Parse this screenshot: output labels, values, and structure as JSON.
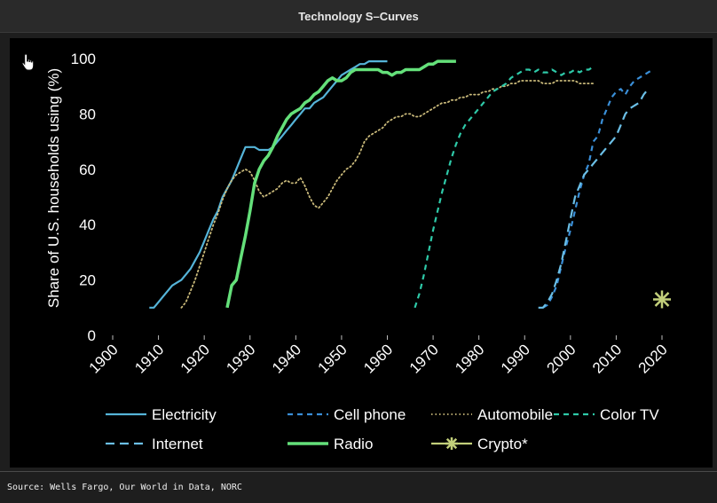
{
  "window": {
    "title": "Technology S–Curves"
  },
  "footer": {
    "source": "Source: Wells Fargo, Our World in Data, NORC"
  },
  "icons": {
    "cursor": "hand-pointer-icon"
  },
  "chart_data": {
    "type": "line",
    "title": "Technology S–Curves",
    "xlabel": "",
    "ylabel": "Share of U.S. households using (%)",
    "xlim": [
      1900,
      2020
    ],
    "ylim": [
      0,
      100
    ],
    "x_ticks": [
      1900,
      1910,
      1920,
      1930,
      1940,
      1950,
      1960,
      1970,
      1980,
      1990,
      2000,
      2010,
      2020
    ],
    "y_ticks": [
      0,
      20,
      40,
      60,
      80,
      100
    ],
    "grid": false,
    "legend_position": "bottom",
    "series": [
      {
        "name": "Electricity",
        "color": "#55b4d8",
        "style": "solid",
        "points": [
          [
            1908,
            10
          ],
          [
            1909,
            10
          ],
          [
            1910,
            12
          ],
          [
            1911,
            14
          ],
          [
            1912,
            16
          ],
          [
            1913,
            18
          ],
          [
            1914,
            19
          ],
          [
            1915,
            20
          ],
          [
            1916,
            22
          ],
          [
            1917,
            24
          ],
          [
            1918,
            27
          ],
          [
            1919,
            30
          ],
          [
            1920,
            34
          ],
          [
            1921,
            38
          ],
          [
            1922,
            42
          ],
          [
            1923,
            45
          ],
          [
            1924,
            50
          ],
          [
            1925,
            53
          ],
          [
            1926,
            56
          ],
          [
            1927,
            60
          ],
          [
            1928,
            64
          ],
          [
            1929,
            68
          ],
          [
            1930,
            68
          ],
          [
            1931,
            68
          ],
          [
            1932,
            67
          ],
          [
            1933,
            67
          ],
          [
            1934,
            67
          ],
          [
            1935,
            68
          ],
          [
            1936,
            70
          ],
          [
            1937,
            72
          ],
          [
            1938,
            74
          ],
          [
            1939,
            76
          ],
          [
            1940,
            78
          ],
          [
            1941,
            80
          ],
          [
            1942,
            82
          ],
          [
            1943,
            82
          ],
          [
            1944,
            84
          ],
          [
            1945,
            85
          ],
          [
            1946,
            86
          ],
          [
            1947,
            88
          ],
          [
            1948,
            90
          ],
          [
            1949,
            92
          ],
          [
            1950,
            94
          ],
          [
            1951,
            95
          ],
          [
            1952,
            96
          ],
          [
            1953,
            97
          ],
          [
            1954,
            98
          ],
          [
            1955,
            98
          ],
          [
            1956,
            99
          ],
          [
            1957,
            99
          ],
          [
            1958,
            99
          ],
          [
            1959,
            99
          ],
          [
            1960,
            99
          ]
        ]
      },
      {
        "name": "Cell phone",
        "color": "#3a8fd8",
        "style": "dash",
        "points": [
          [
            1994,
            10
          ],
          [
            1995,
            11
          ],
          [
            1996,
            14
          ],
          [
            1997,
            18
          ],
          [
            1998,
            25
          ],
          [
            1999,
            32
          ],
          [
            2000,
            38
          ],
          [
            2001,
            45
          ],
          [
            2002,
            52
          ],
          [
            2003,
            58
          ],
          [
            2004,
            62
          ],
          [
            2005,
            70
          ],
          [
            2006,
            72
          ],
          [
            2007,
            78
          ],
          [
            2008,
            82
          ],
          [
            2009,
            86
          ],
          [
            2010,
            88
          ],
          [
            2011,
            89
          ],
          [
            2012,
            87
          ],
          [
            2013,
            90
          ],
          [
            2014,
            92
          ],
          [
            2015,
            93
          ],
          [
            2016,
            94
          ],
          [
            2017,
            95
          ],
          [
            2018,
            96
          ]
        ]
      },
      {
        "name": "Automobile",
        "color": "#c9b97a",
        "style": "dot",
        "points": [
          [
            1915,
            10
          ],
          [
            1916,
            12
          ],
          [
            1917,
            16
          ],
          [
            1918,
            20
          ],
          [
            1919,
            25
          ],
          [
            1920,
            30
          ],
          [
            1921,
            35
          ],
          [
            1922,
            40
          ],
          [
            1923,
            44
          ],
          [
            1924,
            49
          ],
          [
            1925,
            53
          ],
          [
            1926,
            56
          ],
          [
            1927,
            58
          ],
          [
            1928,
            59
          ],
          [
            1929,
            60
          ],
          [
            1930,
            59
          ],
          [
            1931,
            56
          ],
          [
            1932,
            52
          ],
          [
            1933,
            50
          ],
          [
            1934,
            51
          ],
          [
            1935,
            52
          ],
          [
            1936,
            53
          ],
          [
            1937,
            55
          ],
          [
            1938,
            56
          ],
          [
            1939,
            55
          ],
          [
            1940,
            55
          ],
          [
            1941,
            57
          ],
          [
            1942,
            54
          ],
          [
            1943,
            50
          ],
          [
            1944,
            47
          ],
          [
            1945,
            46
          ],
          [
            1946,
            48
          ],
          [
            1947,
            50
          ],
          [
            1948,
            53
          ],
          [
            1949,
            56
          ],
          [
            1950,
            58
          ],
          [
            1951,
            60
          ],
          [
            1952,
            61
          ],
          [
            1953,
            63
          ],
          [
            1954,
            66
          ],
          [
            1955,
            70
          ],
          [
            1956,
            72
          ],
          [
            1957,
            73
          ],
          [
            1958,
            74
          ],
          [
            1959,
            75
          ],
          [
            1960,
            77
          ],
          [
            1961,
            78
          ],
          [
            1962,
            79
          ],
          [
            1963,
            79
          ],
          [
            1964,
            80
          ],
          [
            1965,
            80
          ],
          [
            1966,
            79
          ],
          [
            1967,
            79
          ],
          [
            1968,
            80
          ],
          [
            1969,
            81
          ],
          [
            1970,
            82
          ],
          [
            1971,
            83
          ],
          [
            1972,
            84
          ],
          [
            1973,
            84
          ],
          [
            1974,
            85
          ],
          [
            1975,
            85
          ],
          [
            1976,
            86
          ],
          [
            1977,
            86
          ],
          [
            1978,
            87
          ],
          [
            1979,
            87
          ],
          [
            1980,
            87
          ],
          [
            1981,
            88
          ],
          [
            1982,
            88
          ],
          [
            1983,
            89
          ],
          [
            1984,
            89
          ],
          [
            1985,
            90
          ],
          [
            1986,
            90
          ],
          [
            1987,
            91
          ],
          [
            1988,
            91
          ],
          [
            1989,
            92
          ],
          [
            1990,
            92
          ],
          [
            1991,
            92
          ],
          [
            1992,
            92
          ],
          [
            1993,
            92
          ],
          [
            1994,
            91
          ],
          [
            1995,
            91
          ],
          [
            1996,
            91
          ],
          [
            1997,
            92
          ],
          [
            1998,
            92
          ],
          [
            1999,
            92
          ],
          [
            2000,
            92
          ],
          [
            2001,
            92
          ],
          [
            2002,
            91
          ],
          [
            2003,
            91
          ],
          [
            2004,
            91
          ],
          [
            2005,
            91
          ]
        ]
      },
      {
        "name": "Color TV",
        "color": "#2ec9a8",
        "style": "dash",
        "points": [
          [
            1966,
            10
          ],
          [
            1967,
            15
          ],
          [
            1968,
            22
          ],
          [
            1969,
            30
          ],
          [
            1970,
            38
          ],
          [
            1971,
            45
          ],
          [
            1972,
            52
          ],
          [
            1973,
            58
          ],
          [
            1974,
            64
          ],
          [
            1975,
            69
          ],
          [
            1976,
            73
          ],
          [
            1977,
            76
          ],
          [
            1978,
            78
          ],
          [
            1979,
            80
          ],
          [
            1980,
            82
          ],
          [
            1981,
            84
          ],
          [
            1982,
            86
          ],
          [
            1983,
            88
          ],
          [
            1984,
            89
          ],
          [
            1985,
            90
          ],
          [
            1986,
            91
          ],
          [
            1987,
            93
          ],
          [
            1988,
            94
          ],
          [
            1989,
            95
          ],
          [
            1990,
            96
          ],
          [
            1991,
            96
          ],
          [
            1992,
            95
          ],
          [
            1993,
            96
          ],
          [
            1994,
            95
          ],
          [
            1995,
            95
          ],
          [
            1996,
            96
          ],
          [
            1997,
            95
          ],
          [
            1998,
            94
          ],
          [
            1999,
            95
          ],
          [
            2000,
            95
          ],
          [
            2001,
            96
          ],
          [
            2002,
            95
          ],
          [
            2003,
            96
          ],
          [
            2004,
            96
          ],
          [
            2005,
            97
          ]
        ]
      },
      {
        "name": "Internet",
        "color": "#6bbfe6",
        "style": "longdash",
        "points": [
          [
            1993,
            10
          ],
          [
            1994,
            10
          ],
          [
            1995,
            12
          ],
          [
            1996,
            15
          ],
          [
            1997,
            20
          ],
          [
            1998,
            26
          ],
          [
            1999,
            34
          ],
          [
            2000,
            42
          ],
          [
            2001,
            50
          ],
          [
            2002,
            54
          ],
          [
            2003,
            58
          ],
          [
            2004,
            60
          ],
          [
            2005,
            62
          ],
          [
            2006,
            64
          ],
          [
            2007,
            66
          ],
          [
            2008,
            68
          ],
          [
            2009,
            70
          ],
          [
            2010,
            72
          ],
          [
            2011,
            76
          ],
          [
            2012,
            80
          ],
          [
            2013,
            82
          ],
          [
            2014,
            83
          ],
          [
            2015,
            84
          ],
          [
            2016,
            87
          ],
          [
            2017,
            89
          ]
        ]
      },
      {
        "name": "Radio",
        "color": "#64e07a",
        "style": "solid-thick",
        "points": [
          [
            1925,
            10
          ],
          [
            1926,
            18
          ],
          [
            1927,
            20
          ],
          [
            1928,
            28
          ],
          [
            1929,
            36
          ],
          [
            1930,
            45
          ],
          [
            1931,
            55
          ],
          [
            1932,
            60
          ],
          [
            1933,
            63
          ],
          [
            1934,
            65
          ],
          [
            1935,
            68
          ],
          [
            1936,
            72
          ],
          [
            1937,
            75
          ],
          [
            1938,
            78
          ],
          [
            1939,
            80
          ],
          [
            1940,
            81
          ],
          [
            1941,
            82
          ],
          [
            1942,
            84
          ],
          [
            1943,
            85
          ],
          [
            1944,
            87
          ],
          [
            1945,
            88
          ],
          [
            1946,
            90
          ],
          [
            1947,
            92
          ],
          [
            1948,
            93
          ],
          [
            1949,
            92
          ],
          [
            1950,
            92
          ],
          [
            1951,
            93
          ],
          [
            1952,
            95
          ],
          [
            1953,
            96
          ],
          [
            1954,
            96
          ],
          [
            1955,
            96
          ],
          [
            1956,
            96
          ],
          [
            1957,
            96
          ],
          [
            1958,
            96
          ],
          [
            1959,
            95
          ],
          [
            1960,
            95
          ],
          [
            1961,
            94
          ],
          [
            1962,
            95
          ],
          [
            1963,
            95
          ],
          [
            1964,
            96
          ],
          [
            1965,
            96
          ],
          [
            1966,
            96
          ],
          [
            1967,
            96
          ],
          [
            1968,
            97
          ],
          [
            1969,
            98
          ],
          [
            1970,
            98
          ],
          [
            1971,
            99
          ],
          [
            1972,
            99
          ],
          [
            1973,
            99
          ],
          [
            1974,
            99
          ],
          [
            1975,
            99
          ]
        ]
      },
      {
        "name": "Crypto*",
        "color": "#c2cf7a",
        "style": "marker",
        "points": [
          [
            2020,
            13
          ]
        ]
      }
    ]
  }
}
